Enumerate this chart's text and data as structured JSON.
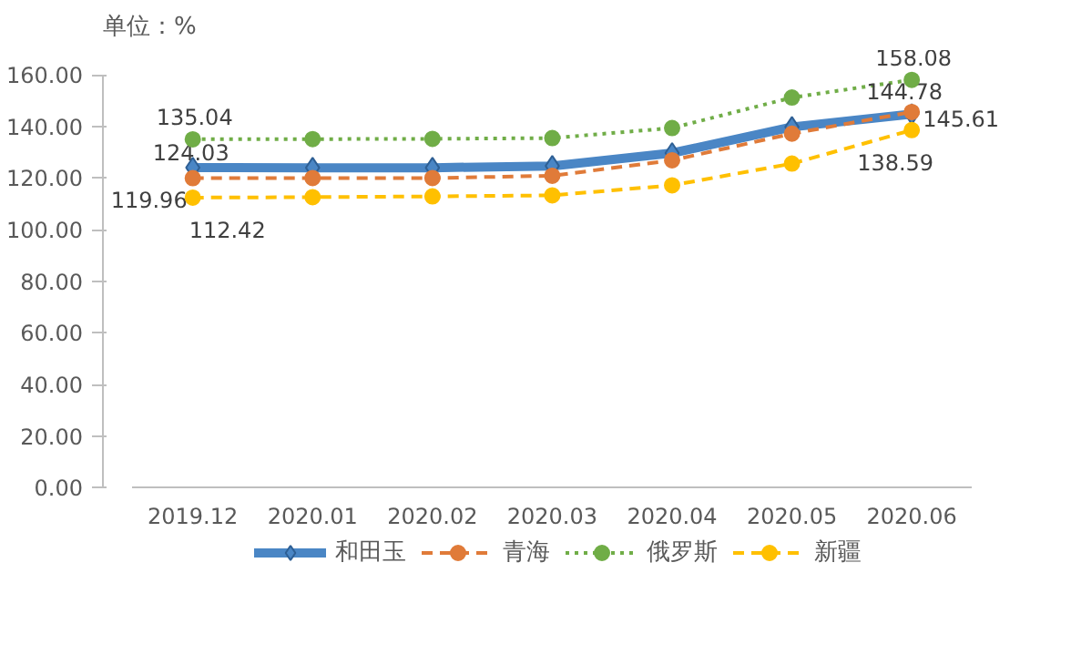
{
  "chart_data": {
    "type": "line",
    "title": "单位：%",
    "categories": [
      "2019.12",
      "2020.01",
      "2020.02",
      "2020.03",
      "2020.04",
      "2020.05",
      "2020.06"
    ],
    "ylim": [
      0,
      160
    ],
    "yticks": [
      {
        "value": 0,
        "label": "0.00"
      },
      {
        "value": 20,
        "label": "20.00"
      },
      {
        "value": 40,
        "label": "40.00"
      },
      {
        "value": 60,
        "label": "60.00"
      },
      {
        "value": 80,
        "label": "80.00"
      },
      {
        "value": 100,
        "label": "100.00"
      },
      {
        "value": 120,
        "label": "120.00"
      },
      {
        "value": 140,
        "label": "140.00"
      },
      {
        "value": 160,
        "label": "160.00"
      }
    ],
    "grid": false,
    "legend": "bottom",
    "series": [
      {
        "name": "和田玉",
        "color": "#4a86c5",
        "marker": "diamond",
        "line_style": "solid",
        "values": [
          124.03,
          124.0,
          124.0,
          124.7,
          129.7,
          139.8,
          144.78
        ],
        "value_labels": [
          "124.03",
          null,
          null,
          null,
          null,
          null,
          "144.78"
        ]
      },
      {
        "name": "青海",
        "color": "#e07b39",
        "marker": "circle",
        "line_style": "dashed",
        "values": [
          119.96,
          120.0,
          120.0,
          120.9,
          126.9,
          137.2,
          145.61
        ],
        "value_labels": [
          "119.96",
          null,
          null,
          null,
          null,
          null,
          "145.61"
        ]
      },
      {
        "name": "俄罗斯",
        "color": "#70ad47",
        "marker": "circle",
        "line_style": "dotted",
        "values": [
          135.04,
          135.1,
          135.2,
          135.5,
          139.4,
          151.2,
          158.08
        ],
        "value_labels": [
          "135.04",
          null,
          null,
          null,
          null,
          null,
          "158.08"
        ]
      },
      {
        "name": "新疆",
        "color": "#ffc000",
        "marker": "circle",
        "line_style": "dashed",
        "values": [
          112.42,
          112.6,
          112.9,
          113.3,
          117.2,
          125.6,
          138.59
        ],
        "value_labels": [
          "112.42",
          null,
          null,
          null,
          null,
          null,
          "138.59"
        ]
      }
    ]
  }
}
